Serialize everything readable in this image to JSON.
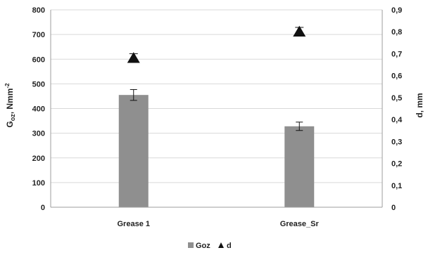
{
  "chart_data": {
    "type": "bar",
    "categories": [
      "Grease 1",
      "Grease_Sr"
    ],
    "series": [
      {
        "name": "Goz",
        "kind": "bar",
        "axis": "left",
        "values": [
          455,
          328
        ],
        "error": [
          22,
          17
        ],
        "color": "#8f8f8f"
      },
      {
        "name": "d",
        "kind": "scatter",
        "marker": "triangle",
        "axis": "right",
        "values": [
          0.68,
          0.8
        ],
        "error": [
          0.02,
          0.02
        ],
        "color": "#111111"
      }
    ],
    "ylabel_main": "G",
    "ylabel_sub": "oz",
    "ylabel_units": ", Nmm",
    "ylabel_sup": "-2",
    "ylabel_right": "d, mm",
    "ylim": [
      0,
      800
    ],
    "ylim_right": [
      0,
      0.9
    ],
    "yticks": [
      "0",
      "100",
      "200",
      "300",
      "400",
      "500",
      "600",
      "700",
      "800"
    ],
    "yticks_right": [
      "0",
      "0,1",
      "0,2",
      "0,3",
      "0,4",
      "0,5",
      "0,6",
      "0,7",
      "0,8",
      "0,9"
    ],
    "grid": true,
    "legend_position": "bottom"
  }
}
